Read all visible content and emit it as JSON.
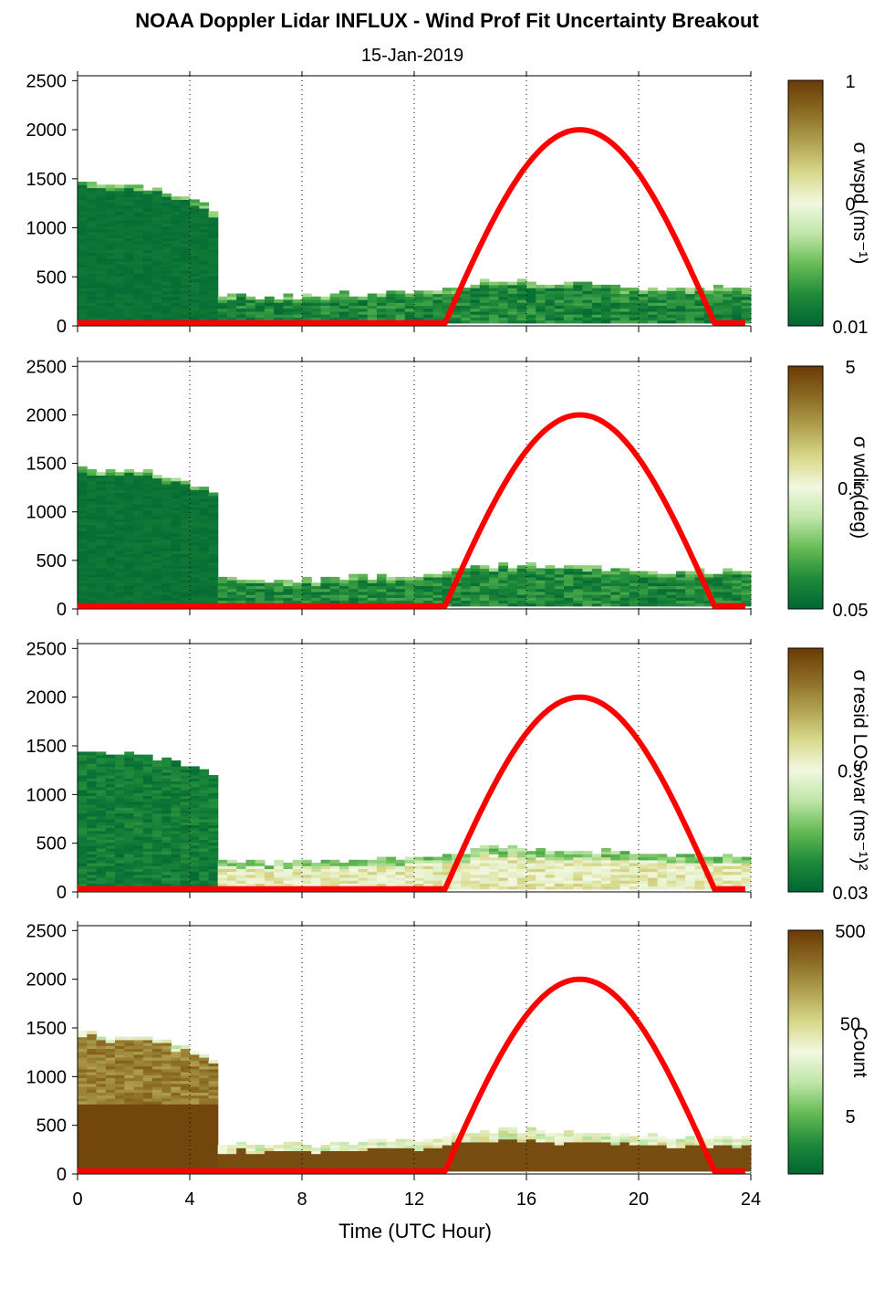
{
  "figure": {
    "title": "NOAA Doppler Lidar INFLUX - Wind Prof Fit Uncertainty Breakout",
    "subtitle": "15-Jan-2019",
    "xlabel": "Time (UTC Hour)"
  },
  "chart_data": [
    {
      "type": "heatmap",
      "panel": 1,
      "colorbar_label": "σ wspd (ms⁻¹)",
      "colorbar_ticks": [
        "1",
        "0",
        "0.01"
      ],
      "x": {
        "range": [
          0,
          24
        ],
        "ticks": [
          0,
          4,
          8,
          12,
          16,
          20,
          24
        ]
      },
      "y": {
        "range": [
          0,
          2550
        ],
        "ticks": [
          0,
          500,
          1000,
          1500,
          2000,
          2500
        ]
      },
      "grid": "vertical dotted",
      "data_top_height": [
        [
          0,
          1450
        ],
        [
          1,
          1400
        ],
        [
          2,
          1420
        ],
        [
          3,
          1350
        ],
        [
          4,
          1270
        ],
        [
          4.7,
          1170
        ],
        [
          4.8,
          300
        ],
        [
          6,
          300
        ],
        [
          8,
          280
        ],
        [
          10,
          320
        ],
        [
          12,
          330
        ],
        [
          13,
          360
        ],
        [
          14,
          420
        ],
        [
          15,
          450
        ],
        [
          16,
          430
        ],
        [
          18,
          410
        ],
        [
          20,
          380
        ],
        [
          22,
          370
        ],
        [
          24,
          370
        ]
      ],
      "sun_elevation_curve": {
        "color": "#ff0000",
        "rise_hour": 13.1,
        "set_hour": 22.7,
        "peak_hour": 17.9,
        "peak_height": 2000
      }
    },
    {
      "type": "heatmap",
      "panel": 2,
      "colorbar_label": "σ wdir (deg)",
      "colorbar_ticks": [
        "5",
        "0.5",
        "0.05"
      ],
      "x": {
        "range": [
          0,
          24
        ],
        "ticks": [
          0,
          4,
          8,
          12,
          16,
          20,
          24
        ]
      },
      "y": {
        "range": [
          0,
          2550
        ],
        "ticks": [
          0,
          500,
          1000,
          1500,
          2000,
          2500
        ]
      },
      "grid": "vertical dotted",
      "sun_elevation_curve": {
        "color": "#ff0000",
        "rise_hour": 13.1,
        "set_hour": 22.7,
        "peak_hour": 17.9,
        "peak_height": 2000
      }
    },
    {
      "type": "heatmap",
      "panel": 3,
      "colorbar_label": "σ resid LOS var (ms⁻¹)²",
      "colorbar_ticks": [
        "0.3",
        "0.03"
      ],
      "x": {
        "range": [
          0,
          24
        ],
        "ticks": [
          0,
          4,
          8,
          12,
          16,
          20,
          24
        ]
      },
      "y": {
        "range": [
          0,
          2550
        ],
        "ticks": [
          0,
          500,
          1000,
          1500,
          2000,
          2500
        ]
      },
      "grid": "vertical dotted",
      "sun_elevation_curve": {
        "color": "#ff0000",
        "rise_hour": 13.1,
        "set_hour": 22.7,
        "peak_hour": 17.9,
        "peak_height": 2000
      }
    },
    {
      "type": "heatmap",
      "panel": 4,
      "colorbar_label": "Count",
      "colorbar_ticks": [
        "500",
        "50",
        "5"
      ],
      "x": {
        "range": [
          0,
          24
        ],
        "ticks": [
          0,
          4,
          8,
          12,
          16,
          20,
          24
        ]
      },
      "y": {
        "range": [
          0,
          2550
        ],
        "ticks": [
          0,
          500,
          1000,
          1500,
          2000,
          2500
        ]
      },
      "grid": "vertical dotted",
      "sun_elevation_curve": {
        "color": "#ff0000",
        "rise_hour": 13.1,
        "set_hour": 22.7,
        "peak_hour": 17.9,
        "peak_height": 2000
      }
    }
  ],
  "colors": {
    "colormap": [
      "#006633",
      "#1f8a3a",
      "#66bb55",
      "#bfe6a8",
      "#f2f8e0",
      "#d8d88a",
      "#b0a050",
      "#8a6a22",
      "#6b3a05"
    ],
    "sun_curve": "#ff0000"
  }
}
